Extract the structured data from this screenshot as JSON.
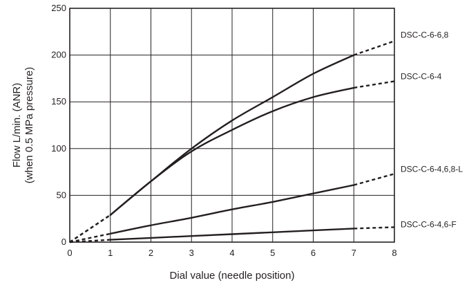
{
  "chart_data": {
    "type": "line",
    "title": "",
    "xlabel": "Dial value (needle position)",
    "ylabel_lines": [
      "Flow L/min. (ANR)",
      "(when 0.5 MPa pressure)"
    ],
    "xlim": [
      0,
      8
    ],
    "ylim": [
      0,
      250
    ],
    "x_ticks": [
      0,
      1,
      2,
      3,
      4,
      5,
      6,
      7,
      8
    ],
    "y_ticks": [
      0,
      50,
      100,
      150,
      200,
      250
    ],
    "grid": true,
    "series": [
      {
        "name": "DSC-C-6-6,8",
        "solid": [
          [
            1,
            29
          ],
          [
            2,
            65
          ],
          [
            3,
            100
          ],
          [
            4,
            130
          ],
          [
            5,
            155
          ],
          [
            6,
            180
          ],
          [
            7,
            200
          ]
        ],
        "dashed_before": [
          [
            0,
            0
          ],
          [
            1,
            29
          ]
        ],
        "dashed_after": [
          [
            7,
            200
          ],
          [
            8,
            215
          ]
        ]
      },
      {
        "name": "DSC-C-6-4",
        "solid": [
          [
            1,
            29
          ],
          [
            2,
            65
          ],
          [
            3,
            97
          ],
          [
            4,
            120
          ],
          [
            5,
            140
          ],
          [
            6,
            155
          ],
          [
            7,
            165
          ]
        ],
        "dashed_before": [
          [
            0,
            0
          ],
          [
            1,
            29
          ]
        ],
        "dashed_after": [
          [
            7,
            165
          ],
          [
            8,
            172
          ]
        ]
      },
      {
        "name": "DSC-C-6-4,6,8-L",
        "solid": [
          [
            1,
            9
          ],
          [
            2,
            18
          ],
          [
            3,
            26
          ],
          [
            4,
            35
          ],
          [
            5,
            43
          ],
          [
            6,
            52
          ],
          [
            7,
            61
          ]
        ],
        "dashed_before": [
          [
            0,
            0
          ],
          [
            1,
            9
          ]
        ],
        "dashed_after": [
          [
            7,
            61
          ],
          [
            8,
            73
          ]
        ]
      },
      {
        "name": "DSC-C-6-4,6-F",
        "solid": [
          [
            1,
            2.5
          ],
          [
            2,
            4.5
          ],
          [
            3,
            6.5
          ],
          [
            4,
            8.5
          ],
          [
            5,
            10.5
          ],
          [
            6,
            12.5
          ],
          [
            7,
            14.5
          ]
        ],
        "dashed_before": [
          [
            0,
            0
          ],
          [
            1,
            2.5
          ]
        ],
        "dashed_after": [
          [
            7,
            14.5
          ],
          [
            8,
            16
          ]
        ]
      }
    ]
  }
}
